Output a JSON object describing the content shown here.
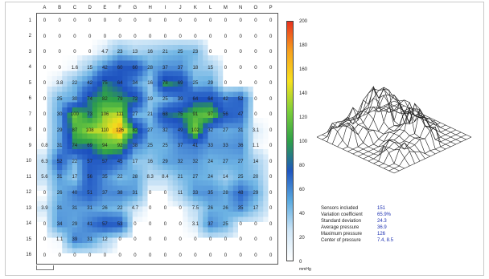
{
  "columns": [
    "A",
    "B",
    "C",
    "D",
    "E",
    "F",
    "G",
    "H",
    "I",
    "J",
    "K",
    "L",
    "M",
    "N",
    "O",
    "P"
  ],
  "rows": [
    "1",
    "2",
    "3",
    "4",
    "5",
    "6",
    "7",
    "8",
    "9",
    "10",
    "11",
    "12",
    "13",
    "14",
    "15",
    "16"
  ],
  "grid_values": [
    [
      "0",
      "0",
      "0",
      "0",
      "0",
      "0",
      "0",
      "0",
      "0",
      "0",
      "0",
      "0",
      "0",
      "0",
      "0",
      "0"
    ],
    [
      "0",
      "0",
      "0",
      "0",
      "0",
      "0",
      "0",
      "0",
      "0",
      "0",
      "0",
      "0",
      "0",
      "0",
      "0",
      "0"
    ],
    [
      "0",
      "0",
      "0",
      "0",
      "4.7",
      "23",
      "13",
      "16",
      "21",
      "25",
      "23",
      "0",
      "0",
      "0",
      "0",
      "0"
    ],
    [
      "0",
      "0",
      "1.6",
      "15",
      "42",
      "60",
      "60",
      "28",
      "37",
      "37",
      "18",
      "15",
      "0",
      "0",
      "0",
      "0"
    ],
    [
      "0",
      "3.8",
      "22",
      "42",
      "75",
      "64",
      "34",
      "16",
      "78",
      "69",
      "25",
      "29",
      "0",
      "0",
      "0",
      "0"
    ],
    [
      "0",
      "25",
      "30",
      "74",
      "82",
      "79",
      "72",
      "19",
      "25",
      "39",
      "64",
      "64",
      "42",
      "52",
      "0",
      "0"
    ],
    [
      "0",
      "30",
      "100",
      "73",
      "106",
      "111",
      "27",
      "21",
      "68",
      "75",
      "91",
      "97",
      "56",
      "47",
      "0",
      "0"
    ],
    [
      "0",
      "29",
      "87",
      "108",
      "110",
      "126",
      "82",
      "27",
      "32",
      "49",
      "102",
      "32",
      "27",
      "31",
      "3.1",
      "0"
    ],
    [
      "0.8",
      "31",
      "74",
      "69",
      "94",
      "92",
      "38",
      "25",
      "25",
      "37",
      "41",
      "33",
      "33",
      "36",
      "1.1",
      "0"
    ],
    [
      "6.3",
      "52",
      "22",
      "57",
      "57",
      "45",
      "17",
      "16",
      "29",
      "32",
      "32",
      "24",
      "27",
      "27",
      "14",
      "0"
    ],
    [
      "5.6",
      "31",
      "17",
      "56",
      "35",
      "22",
      "28",
      "8.3",
      "8.4",
      "21",
      "27",
      "24",
      "14",
      "25",
      "20",
      "0"
    ],
    [
      "0",
      "26",
      "40",
      "51",
      "37",
      "38",
      "31",
      "0",
      "0",
      "11",
      "33",
      "35",
      "28",
      "48",
      "29",
      "0"
    ],
    [
      "3.9",
      "31",
      "31",
      "31",
      "26",
      "22",
      "4.7",
      "0",
      "0",
      "0",
      "7.5",
      "26",
      "26",
      "35",
      "17",
      "0"
    ],
    [
      "0",
      "34",
      "29",
      "41",
      "57",
      "53",
      "0",
      "0",
      "0",
      "0",
      "3.1",
      "37",
      "25",
      "0",
      "0",
      "0"
    ],
    [
      "0",
      "1.1",
      "39",
      "31",
      "12",
      "0",
      "0",
      "0",
      "0",
      "0",
      "0",
      "0",
      "0",
      "0",
      "0",
      "0"
    ],
    [
      "0",
      "0",
      "0",
      "0",
      "0",
      "0",
      "0",
      "0",
      "0",
      "0",
      "0",
      "0",
      "0",
      "0",
      "0",
      "0"
    ]
  ],
  "colorbar": {
    "ticks": [
      "200",
      "180",
      "160",
      "140",
      "120",
      "100",
      "80",
      "60",
      "40",
      "20",
      "0"
    ],
    "unit": "mmHg",
    "max": 200,
    "colors": [
      "#ffffff",
      "#cfe6f7",
      "#5aaae0",
      "#1f56bf",
      "#2ea049",
      "#7ccf3a",
      "#f7e11e",
      "#f7a21e",
      "#e8321e"
    ]
  },
  "stats": [
    {
      "label": "Sensors included",
      "value": "151"
    },
    {
      "label": "Variation coefficient",
      "value": "65.9%"
    },
    {
      "label": "Standard deviation",
      "value": "24.3"
    },
    {
      "label": "Average pressure",
      "value": "36.9"
    },
    {
      "label": "Maximum pressure",
      "value": "126"
    },
    {
      "label": "Center of pressure",
      "value": "7.4, 8.5"
    }
  ]
}
